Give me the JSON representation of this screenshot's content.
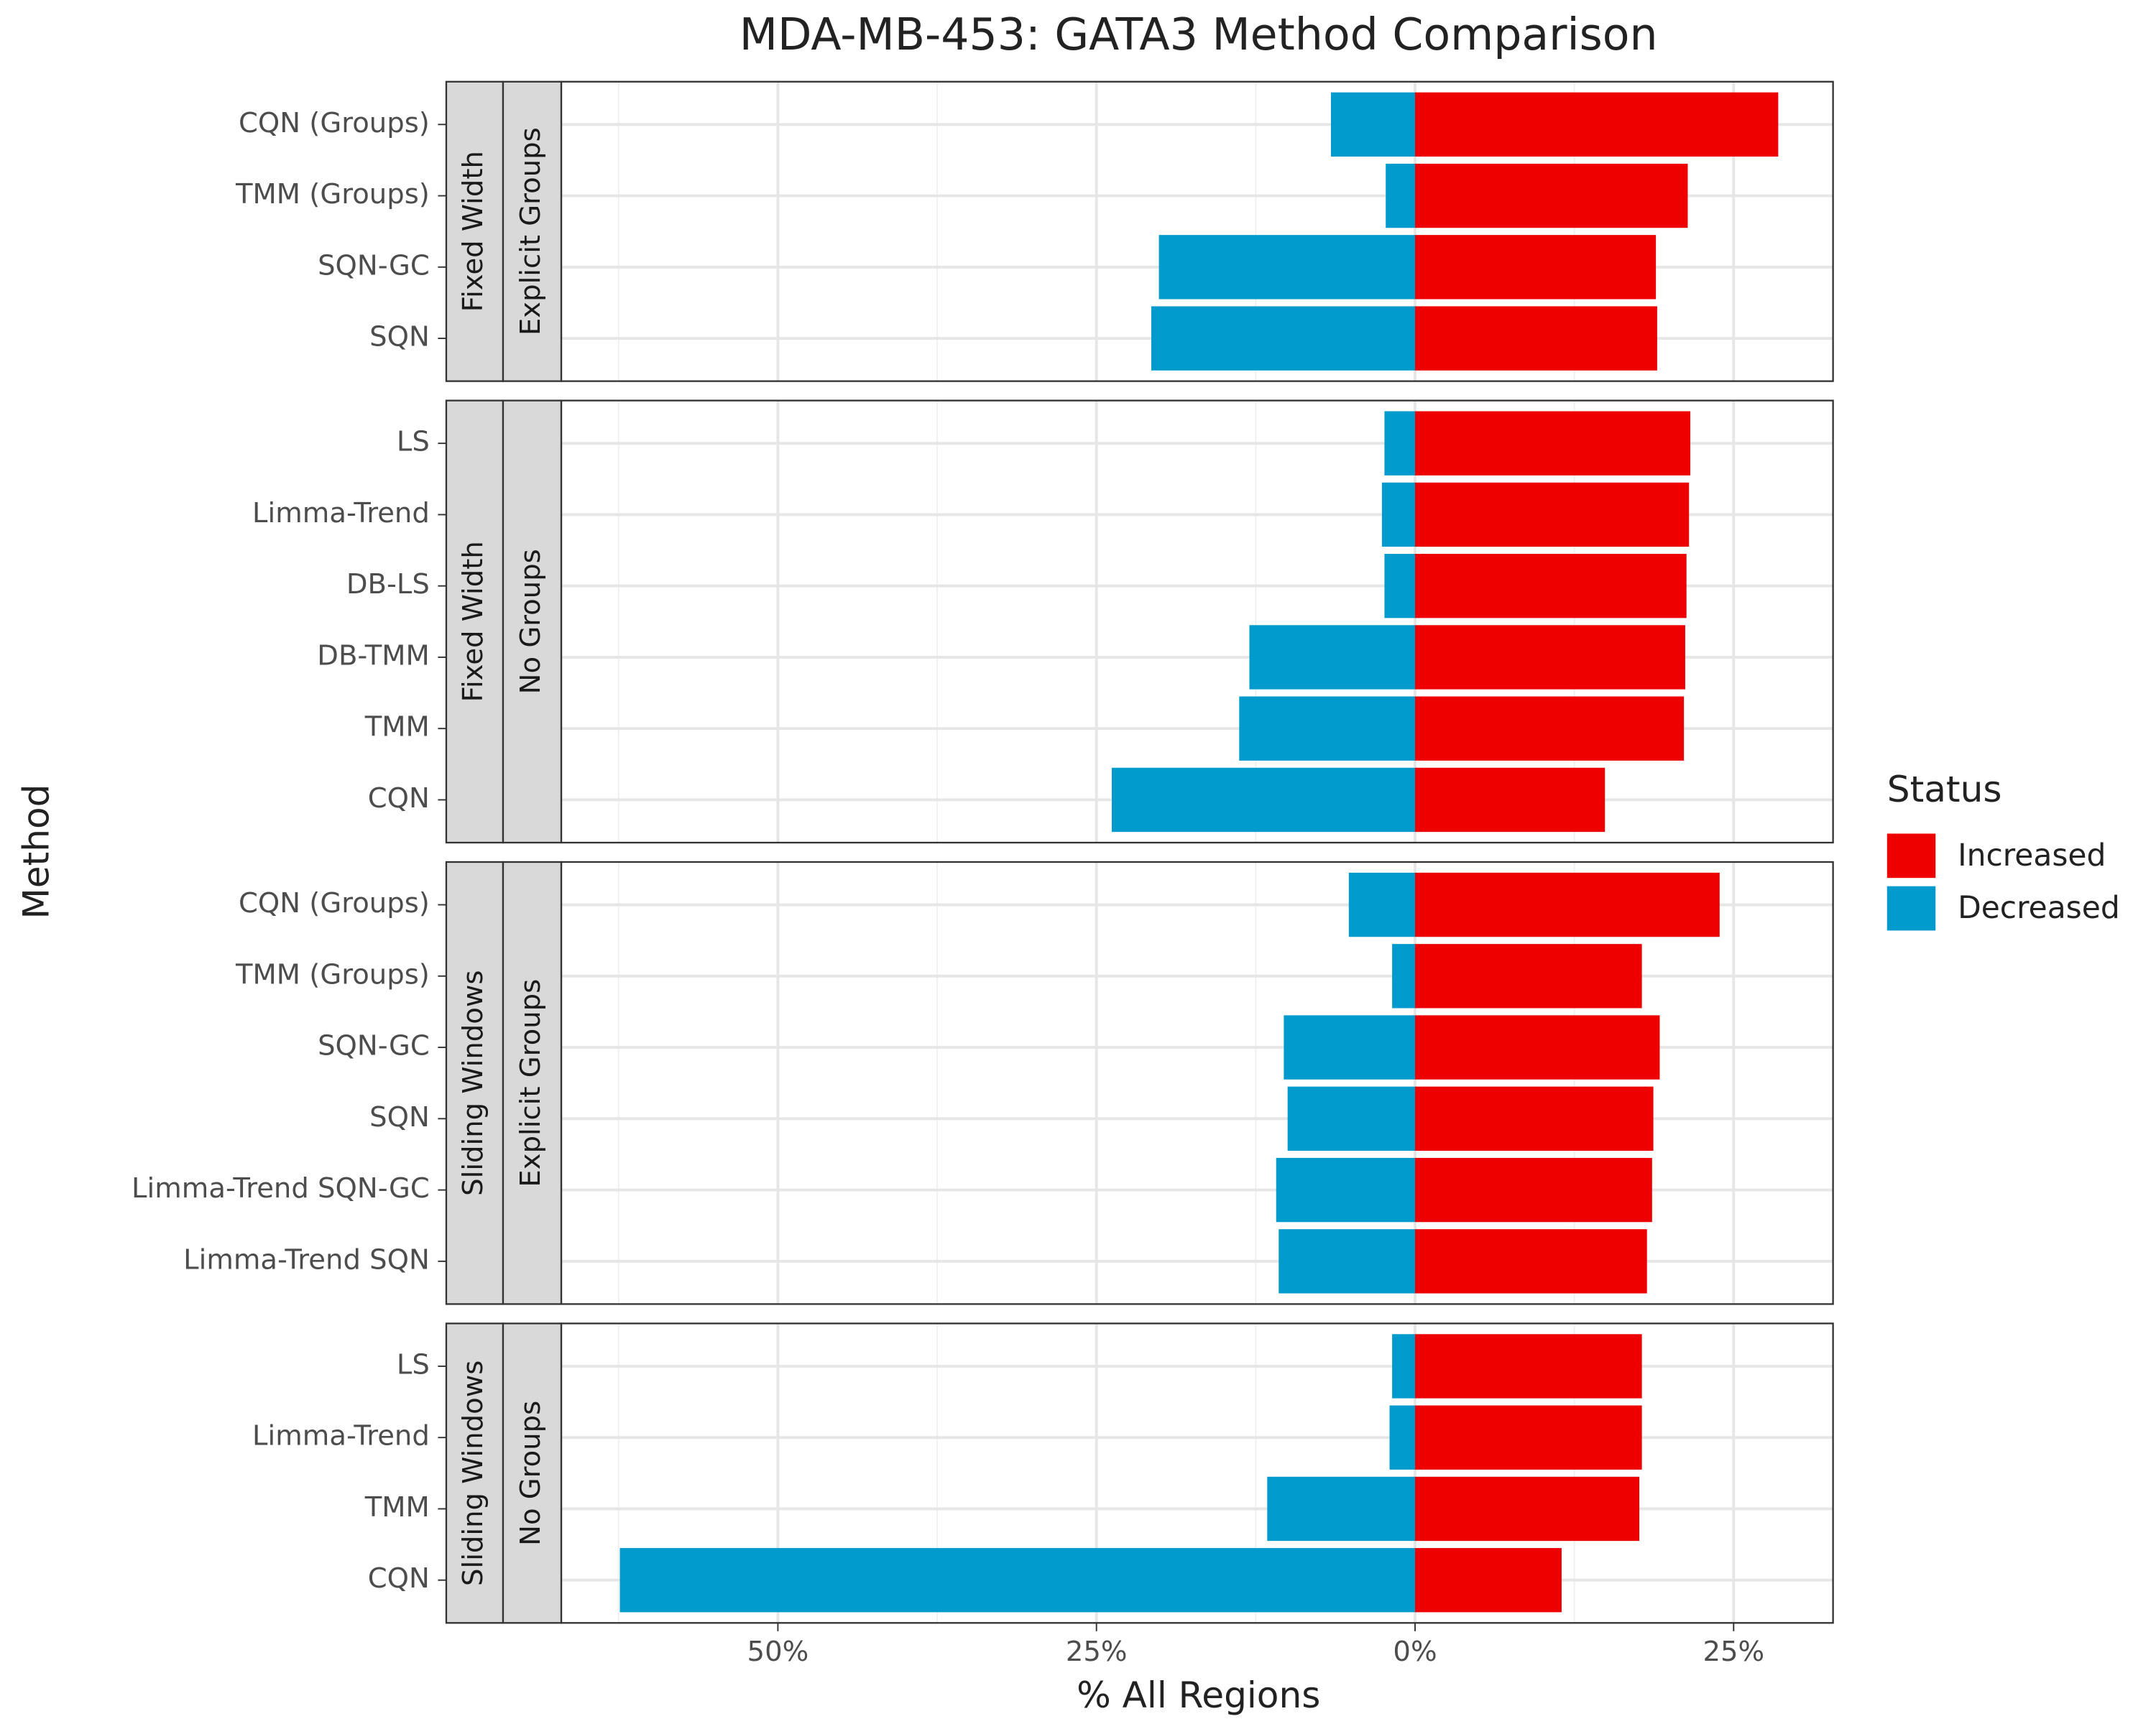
{
  "chart_data": {
    "type": "bar",
    "title": "MDA-MB-453: GATA3 Method Comparison",
    "xlabel": "% All Regions",
    "ylabel": "Method",
    "xlim": [
      -67.0,
      32.8
    ],
    "xticks": [
      {
        "value": -50,
        "label": "50%"
      },
      {
        "value": -25,
        "label": "25%"
      },
      {
        "value": 0,
        "label": "0%"
      },
      {
        "value": 25,
        "label": "25%"
      }
    ],
    "grid": true,
    "legend": {
      "title": "Status",
      "position": "right"
    },
    "series_names": [
      "Increased",
      "Decreased"
    ],
    "colors": [
      "#ee0000",
      "#009acd"
    ],
    "panels": [
      {
        "strips": [
          "Fixed Width",
          "Explicit Groups"
        ],
        "categories": [
          "CQN (Groups)",
          "TMM (Groups)",
          "SQN-GC",
          "SQN"
        ],
        "series": [
          {
            "name": "Increased",
            "values": [
              28.5,
              21.4,
              18.9,
              19.0
            ]
          },
          {
            "name": "Decreased",
            "values": [
              -6.6,
              -2.3,
              -20.1,
              -20.7
            ]
          }
        ]
      },
      {
        "strips": [
          "Fixed Width",
          "No Groups"
        ],
        "categories": [
          "LS",
          "Limma-Trend ",
          "DB-LS",
          "DB-TMM",
          "TMM",
          "CQN"
        ],
        "series": [
          {
            "name": "Increased",
            "values": [
              21.6,
              21.5,
              21.3,
              21.2,
              21.1,
              14.9
            ]
          },
          {
            "name": "Decreased",
            "values": [
              -2.4,
              -2.6,
              -2.4,
              -13.0,
              -13.8,
              -23.8
            ]
          }
        ]
      },
      {
        "strips": [
          "Sliding Windows",
          "Explicit Groups"
        ],
        "categories": [
          "CQN (Groups)",
          "TMM (Groups)",
          "SQN-GC",
          "SQN",
          "Limma-Trend SQN-GC",
          "Limma-Trend SQN"
        ],
        "series": [
          {
            "name": "Increased",
            "values": [
              23.9,
              17.8,
              19.2,
              18.7,
              18.6,
              18.2
            ]
          },
          {
            "name": "Decreased",
            "values": [
              -5.2,
              -1.8,
              -10.3,
              -10.0,
              -10.9,
              -10.7
            ]
          }
        ]
      },
      {
        "strips": [
          "Sliding Windows",
          "No Groups"
        ],
        "categories": [
          "LS",
          "Limma-Trend ",
          "TMM",
          "CQN"
        ],
        "series": [
          {
            "name": "Increased",
            "values": [
              17.8,
              17.8,
              17.6,
              11.5
            ]
          },
          {
            "name": "Decreased",
            "values": [
              -1.8,
              -2.0,
              -11.6,
              -62.4
            ]
          }
        ]
      }
    ]
  }
}
